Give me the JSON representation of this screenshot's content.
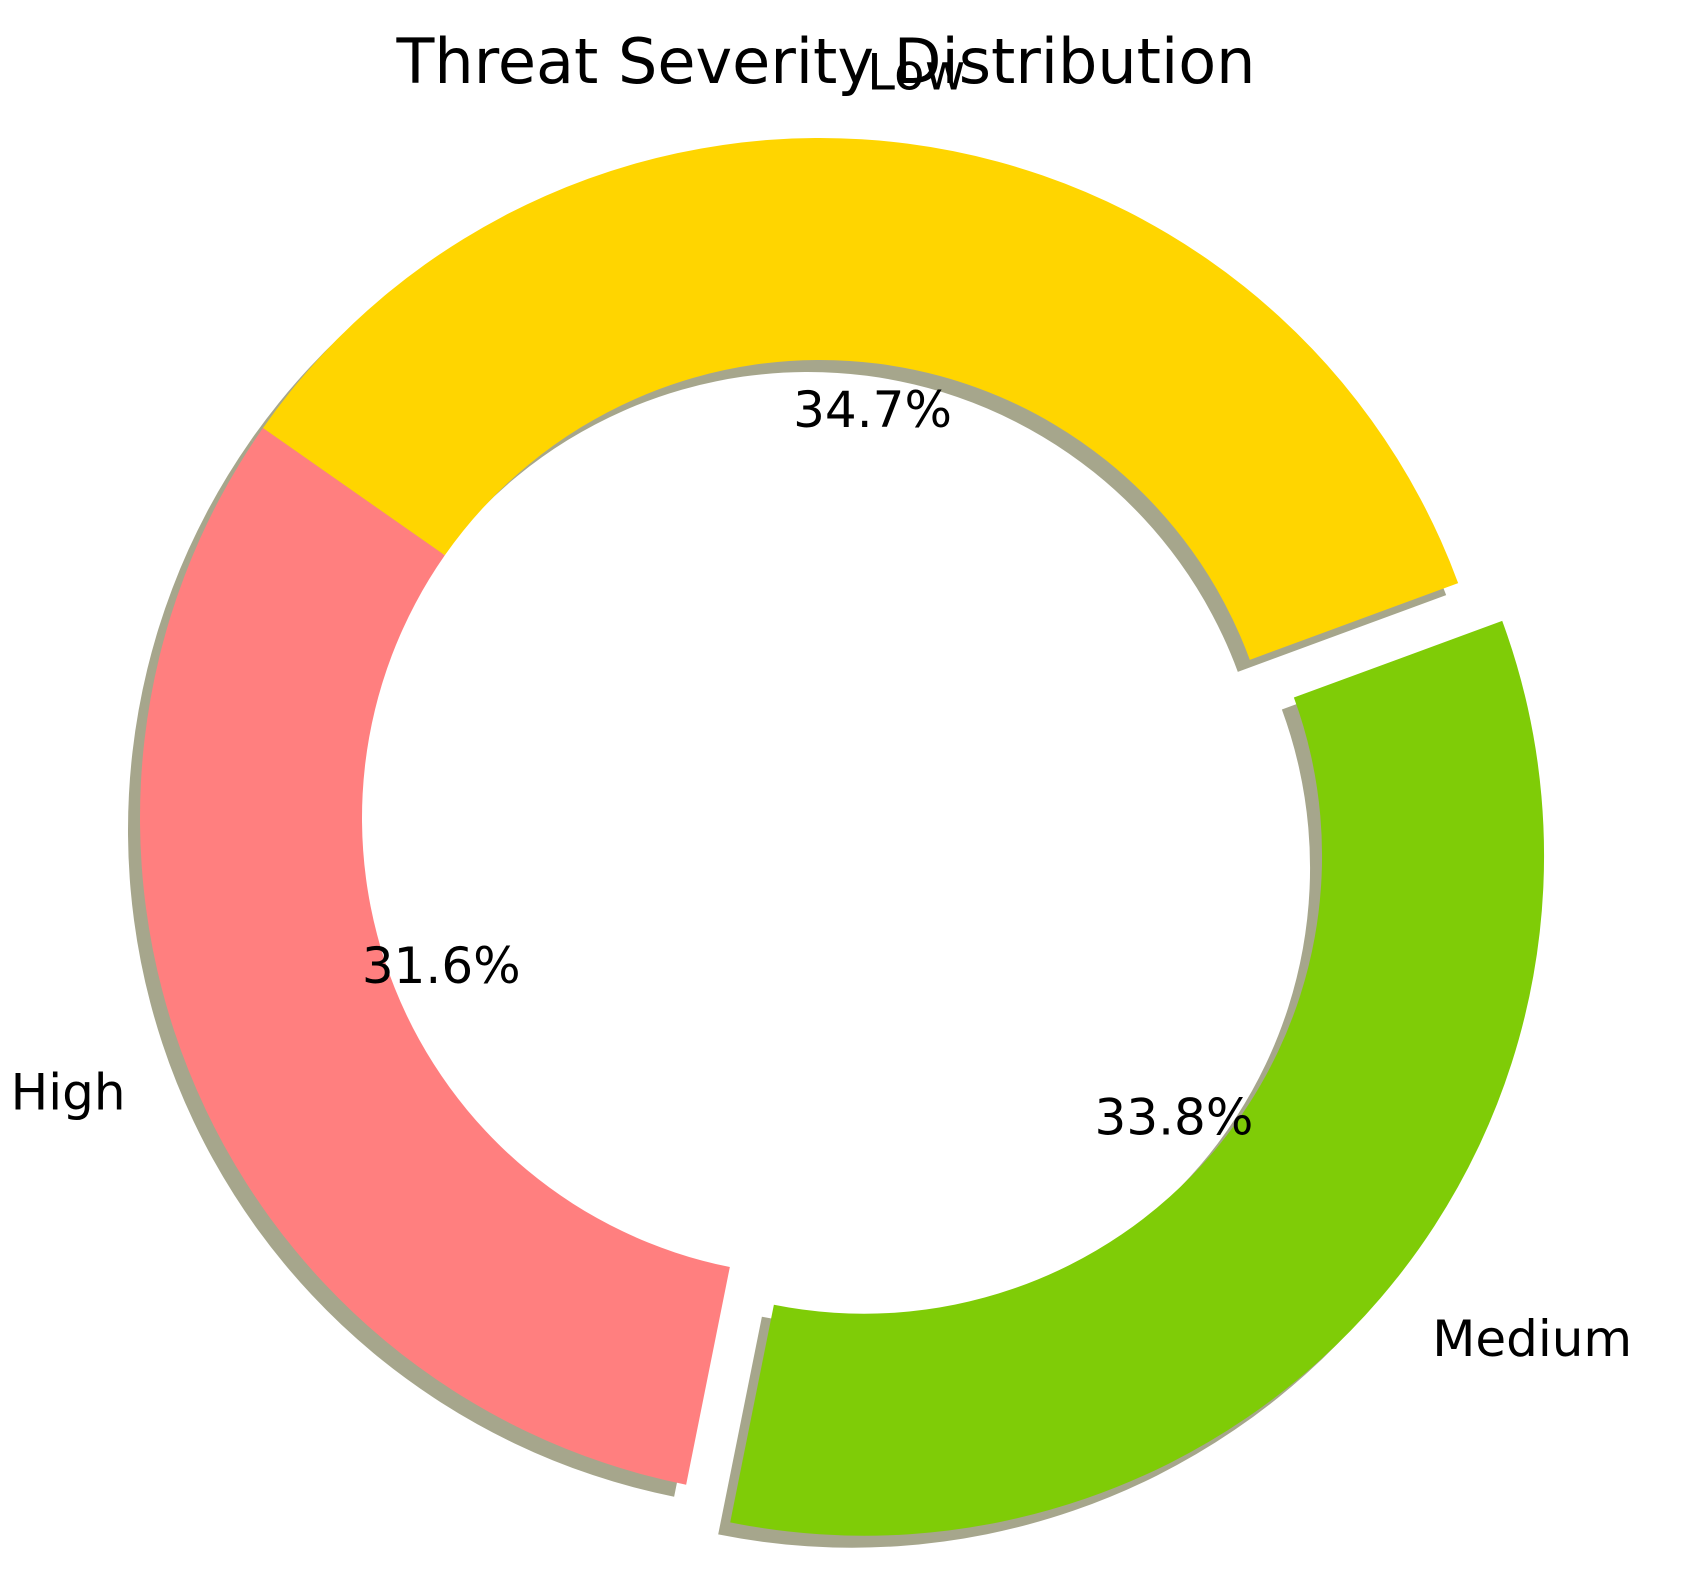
{
  "chart_data": {
    "type": "pie",
    "variant": "donut",
    "title": "Threat Severity Distribution",
    "categories": [
      "High",
      "Medium",
      "Low"
    ],
    "values": [
      31.6,
      33.8,
      34.7
    ],
    "value_labels": [
      "31.6%",
      "33.8%",
      "34.7%"
    ],
    "colors": [
      "#ff7f7f",
      "#7fcc07",
      "#ffd500"
    ],
    "exploded": [
      "Medium"
    ],
    "shadow": true,
    "legend": "none"
  }
}
